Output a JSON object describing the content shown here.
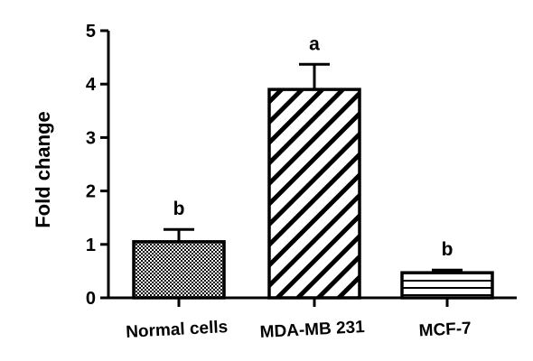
{
  "chart_data": {
    "type": "bar",
    "ylabel": "Fold change",
    "ylim": [
      0,
      5
    ],
    "yticks": [
      "0",
      "1",
      "2",
      "3",
      "4",
      "5"
    ],
    "categories": [
      "Normal cells",
      "MDA-MB 231",
      "MCF-7"
    ],
    "values": [
      1.05,
      3.9,
      0.47
    ],
    "error_upper": [
      0.23,
      0.47,
      0.05
    ],
    "significance_letters": [
      "b",
      "a",
      "b"
    ],
    "bar_patterns": [
      "crosshatch",
      "diagonal",
      "horizontal"
    ],
    "colors": {
      "outline": "#000000",
      "fill": "#ffffff"
    }
  }
}
